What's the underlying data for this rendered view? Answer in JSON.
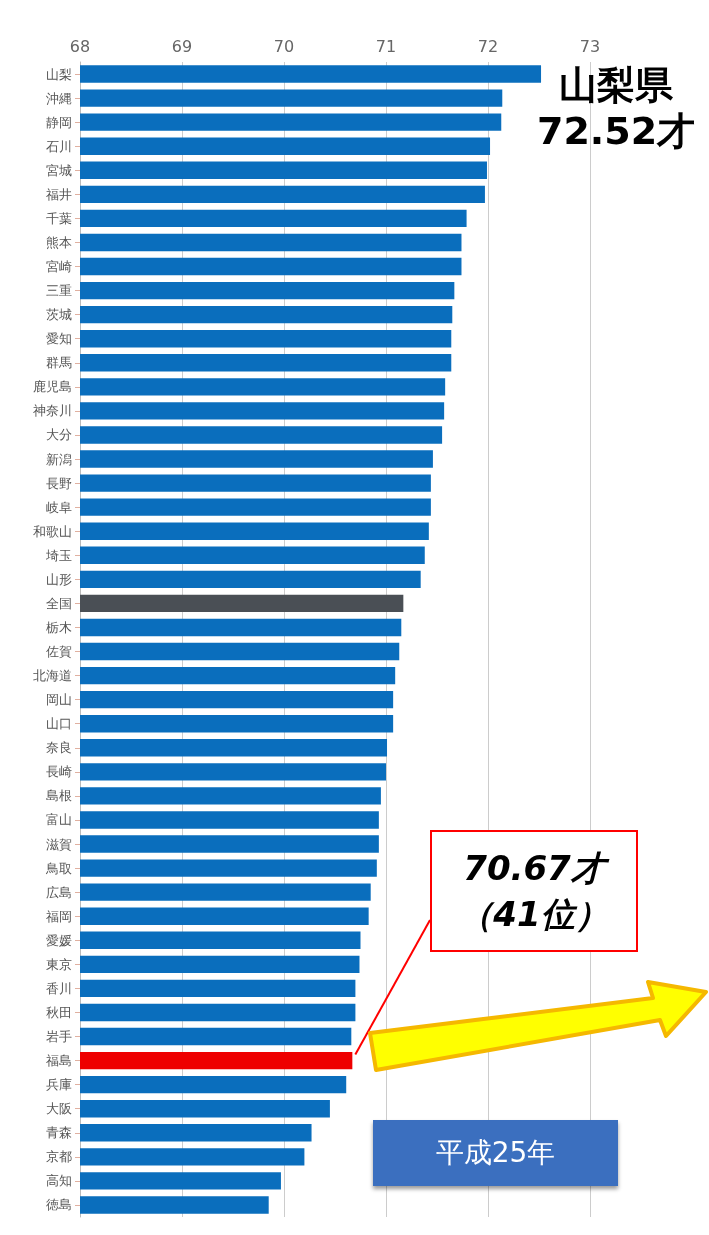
{
  "chart_data": {
    "type": "bar",
    "orientation": "horizontal",
    "categories": [
      "山梨",
      "沖縄",
      "静岡",
      "石川",
      "宮城",
      "福井",
      "千葉",
      "熊本",
      "宮崎",
      "三重",
      "茨城",
      "愛知",
      "群馬",
      "鹿児島",
      "神奈川",
      "大分",
      "新潟",
      "長野",
      "岐阜",
      "和歌山",
      "埼玉",
      "山形",
      "全国",
      "栃木",
      "佐賀",
      "北海道",
      "岡山",
      "山口",
      "奈良",
      "長崎",
      "島根",
      "富山",
      "滋賀",
      "鳥取",
      "広島",
      "福岡",
      "愛媛",
      "東京",
      "香川",
      "秋田",
      "岩手",
      "福島",
      "兵庫",
      "大阪",
      "青森",
      "京都",
      "高知",
      "徳島"
    ],
    "values": [
      72.52,
      72.14,
      72.13,
      72.02,
      71.99,
      71.97,
      71.79,
      71.74,
      71.74,
      71.67,
      71.65,
      71.64,
      71.64,
      71.58,
      71.57,
      71.55,
      71.46,
      71.44,
      71.44,
      71.42,
      71.38,
      71.34,
      71.17,
      71.15,
      71.13,
      71.09,
      71.07,
      71.07,
      71.01,
      71.0,
      70.95,
      70.93,
      70.93,
      70.91,
      70.85,
      70.83,
      70.75,
      70.74,
      70.7,
      70.7,
      70.66,
      70.67,
      70.61,
      70.45,
      70.27,
      70.2,
      69.97,
      69.85
    ],
    "colors": [
      "#0a6ebd",
      "#0a6ebd",
      "#0a6ebd",
      "#0a6ebd",
      "#0a6ebd",
      "#0a6ebd",
      "#0a6ebd",
      "#0a6ebd",
      "#0a6ebd",
      "#0a6ebd",
      "#0a6ebd",
      "#0a6ebd",
      "#0a6ebd",
      "#0a6ebd",
      "#0a6ebd",
      "#0a6ebd",
      "#0a6ebd",
      "#0a6ebd",
      "#0a6ebd",
      "#0a6ebd",
      "#0a6ebd",
      "#0a6ebd",
      "#4a4f55",
      "#0a6ebd",
      "#0a6ebd",
      "#0a6ebd",
      "#0a6ebd",
      "#0a6ebd",
      "#0a6ebd",
      "#0a6ebd",
      "#0a6ebd",
      "#0a6ebd",
      "#0a6ebd",
      "#0a6ebd",
      "#0a6ebd",
      "#0a6ebd",
      "#0a6ebd",
      "#0a6ebd",
      "#0a6ebd",
      "#0a6ebd",
      "#0a6ebd",
      "#ee0000",
      "#0a6ebd",
      "#0a6ebd",
      "#0a6ebd",
      "#0a6ebd",
      "#0a6ebd",
      "#0a6ebd"
    ],
    "xlim": [
      68,
      73
    ],
    "xticks": [
      68,
      69,
      70,
      71,
      72,
      73
    ],
    "grid": "x",
    "annotations": [
      {
        "text": "山梨県\n72.52才",
        "x": 72.52,
        "y": "山梨"
      },
      {
        "text": "70.67才（41位）",
        "x": 70.67,
        "y": "福島"
      },
      "平成25年"
    ]
  }
}
